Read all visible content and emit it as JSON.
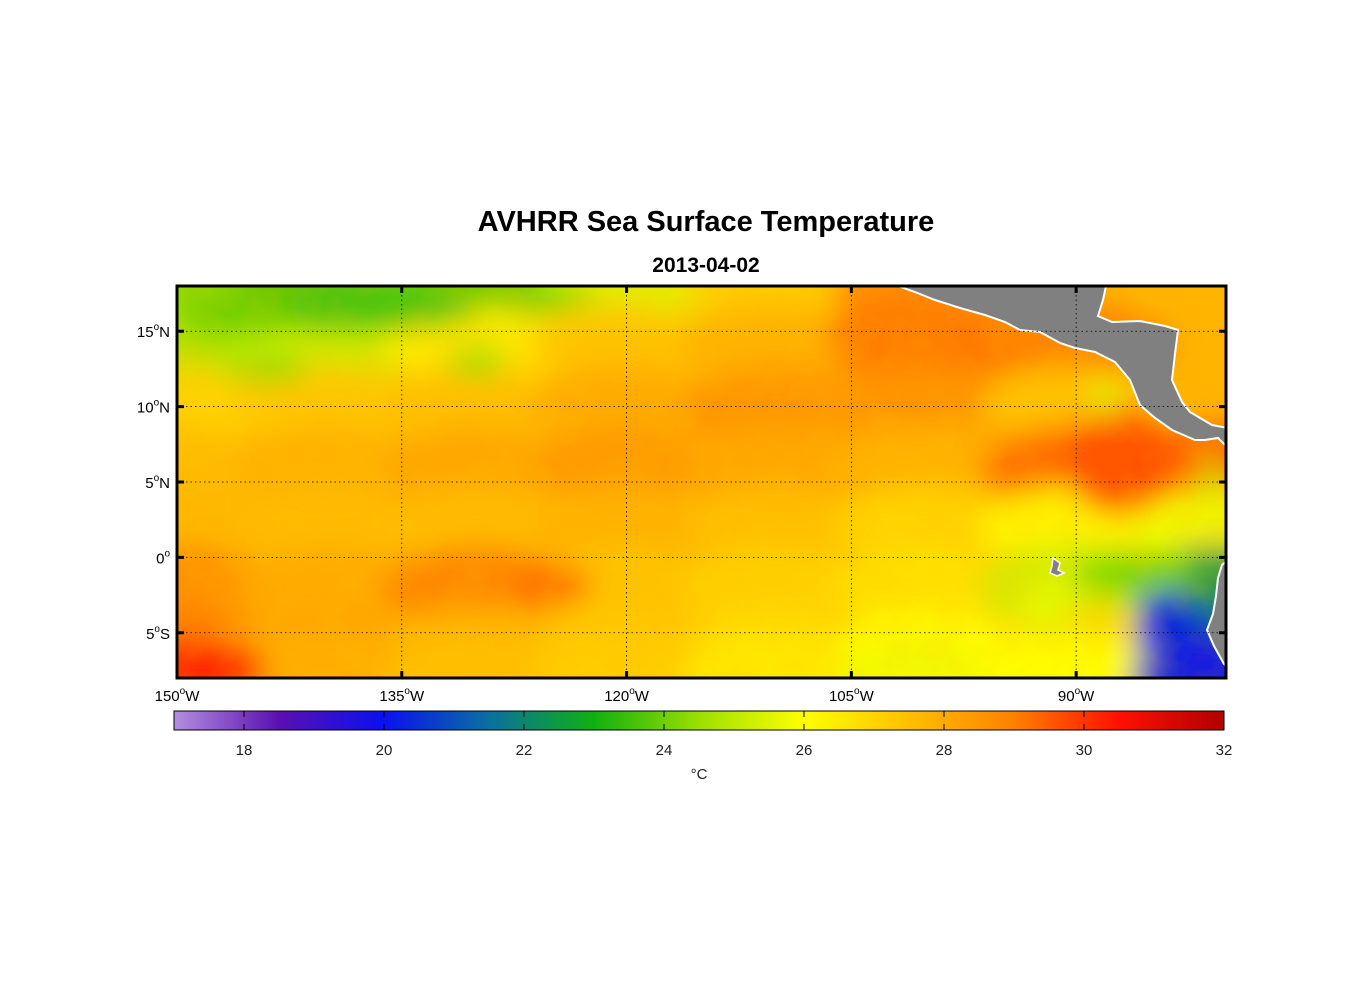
{
  "header": {
    "title": "AVHRR Sea Surface Temperature",
    "date": "2013-04-02"
  },
  "chart_data": {
    "type": "heatmap",
    "variable": "Sea Surface Temperature",
    "lon_range": [
      -150,
      -80
    ],
    "lat_range": [
      -8,
      18
    ],
    "lat_ticks": [
      {
        "value": 15,
        "label": "15°N"
      },
      {
        "value": 10,
        "label": "10°N"
      },
      {
        "value": 5,
        "label": "5°N"
      },
      {
        "value": 0,
        "label": "0°"
      },
      {
        "value": -5,
        "label": "5°S"
      }
    ],
    "lon_ticks": [
      {
        "value": -150,
        "label": "150°W"
      },
      {
        "value": -135,
        "label": "135°W"
      },
      {
        "value": -120,
        "label": "120°W"
      },
      {
        "value": -105,
        "label": "105°W"
      },
      {
        "value": -90,
        "label": "90°W"
      }
    ],
    "grid": true,
    "colorbar": {
      "range": [
        17,
        32
      ],
      "ticks": [
        18,
        20,
        22,
        24,
        26,
        28,
        30,
        32
      ],
      "unit": "°C",
      "colors": [
        "#b48ee0",
        "#5a10b0",
        "#0a10f0",
        "#0a70a0",
        "#10b010",
        "#9ce000",
        "#ffff00",
        "#ffc000",
        "#ff8000",
        "#ff1000",
        "#b00000"
      ]
    },
    "land_color": "#808080",
    "field": {
      "description_cells_lon": [
        -150,
        -140,
        -130,
        -120,
        -110,
        -100,
        -90,
        -80
      ],
      "description_cells_lat": [
        18,
        14,
        10,
        6,
        2,
        -2,
        -6,
        -8
      ],
      "values": [
        [
          24.3,
          23.8,
          24.0,
          25.5,
          27.2,
          28.8,
          null,
          null
        ],
        [
          24.8,
          25.2,
          26.5,
          27.4,
          27.8,
          29.2,
          29.0,
          null
        ],
        [
          27.0,
          27.3,
          27.5,
          28.0,
          28.5,
          28.4,
          27.4,
          null
        ],
        [
          27.6,
          27.8,
          28.1,
          28.4,
          28.1,
          27.8,
          29.3,
          29.5
        ],
        [
          27.7,
          27.6,
          27.6,
          27.8,
          27.5,
          27.0,
          26.2,
          25.8
        ],
        [
          28.7,
          28.0,
          28.9,
          27.4,
          27.1,
          26.7,
          25.2,
          22.4
        ],
        [
          28.9,
          28.1,
          27.7,
          27.3,
          26.8,
          26.1,
          26.8,
          21.0
        ],
        [
          29.6,
          27.9,
          27.5,
          27.2,
          26.5,
          25.8,
          26.0,
          20.2
        ]
      ]
    }
  }
}
